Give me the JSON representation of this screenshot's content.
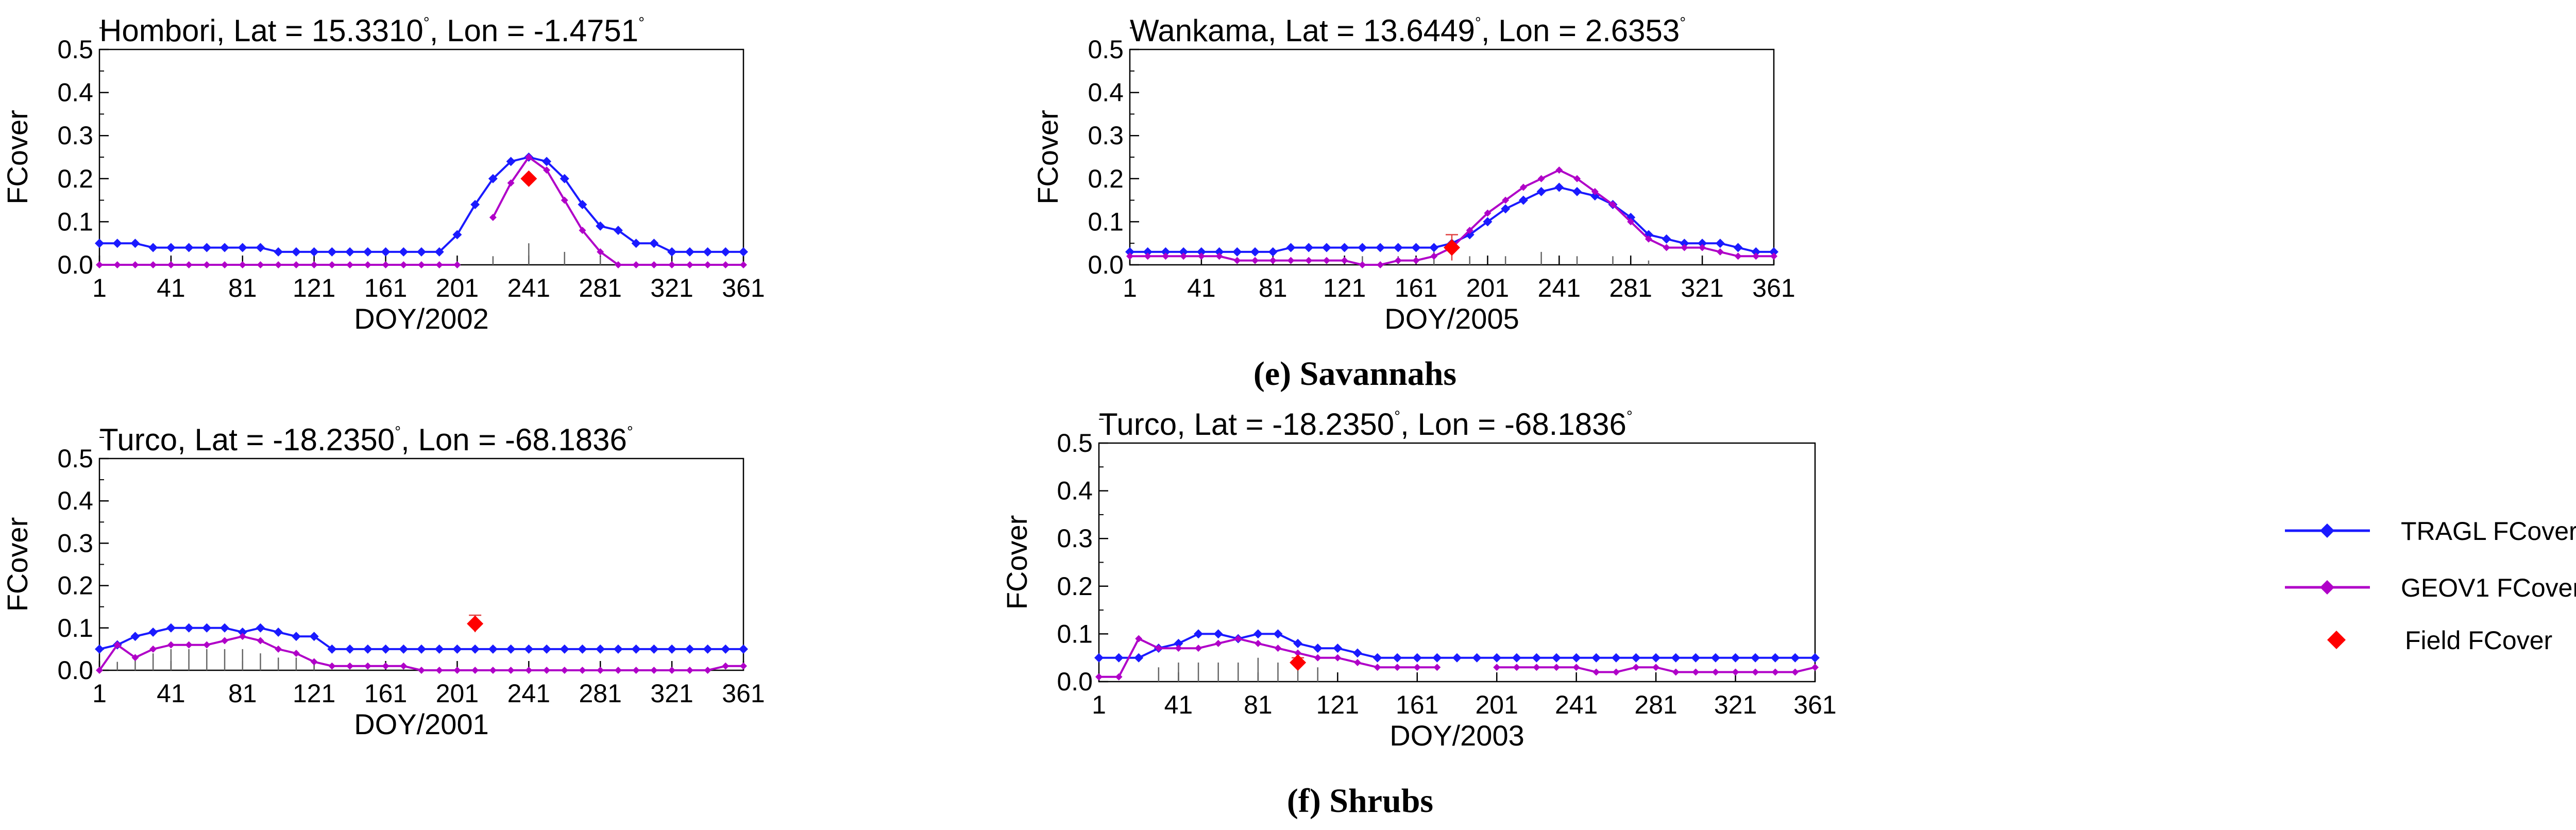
{
  "colors": {
    "tragl": "#1a1aff",
    "geov1": "#b000c8",
    "field": "#ff0000",
    "stem": "#666666"
  },
  "legend": {
    "tragl": "TRAGL FCover",
    "geov1": "GEOV1 FCover",
    "field": "Field FCover"
  },
  "captions": {
    "savannahs": "(e) Savannahs",
    "shrubs": "(f) Shrubs"
  },
  "chart_data": [
    {
      "type": "line",
      "title": "Hombori,  Lat = 15.3310",
      "title_lon": ", Lon = -1.4751",
      "xlabel": "DOY/2002",
      "ylabel": "FCover",
      "xticks": [
        1,
        41,
        81,
        121,
        161,
        201,
        241,
        281,
        321,
        361
      ],
      "yticks": [
        "0.0",
        "0.1",
        "0.2",
        "0.3",
        "0.4",
        "0.5"
      ],
      "xlim": [
        1,
        361
      ],
      "ylim": [
        0,
        0.5
      ],
      "series": [
        {
          "name": "TRAGL FCover",
          "x": [
            1,
            11,
            21,
            31,
            41,
            51,
            61,
            71,
            81,
            91,
            101,
            111,
            121,
            131,
            141,
            151,
            161,
            171,
            181,
            191,
            201,
            211,
            221,
            231,
            241,
            251,
            261,
            271,
            281,
            291,
            301,
            311,
            321,
            331,
            341,
            351,
            361
          ],
          "y": [
            0.05,
            0.05,
            0.05,
            0.04,
            0.04,
            0.04,
            0.04,
            0.04,
            0.04,
            0.04,
            0.03,
            0.03,
            0.03,
            0.03,
            0.03,
            0.03,
            0.03,
            0.03,
            0.03,
            0.03,
            0.07,
            0.14,
            0.2,
            0.24,
            0.25,
            0.24,
            0.2,
            0.14,
            0.09,
            0.08,
            0.05,
            0.05,
            0.03,
            0.03,
            0.03,
            0.03,
            0.03
          ]
        },
        {
          "name": "GEOV1 FCover",
          "x": [
            1,
            11,
            21,
            31,
            41,
            51,
            61,
            71,
            81,
            91,
            101,
            111,
            121,
            131,
            141,
            151,
            161,
            171,
            181,
            191,
            201,
            211,
            221,
            231,
            241,
            251,
            261,
            271,
            281,
            291,
            301,
            311,
            321,
            331,
            341,
            351,
            361
          ],
          "y": [
            0.0,
            0.0,
            0.0,
            0.0,
            0.0,
            0.0,
            0.0,
            0.0,
            0.0,
            0.0,
            0.0,
            0.0,
            0.0,
            0.0,
            0.0,
            0.0,
            0.0,
            0.0,
            0.0,
            0.0,
            0.0,
            null,
            0.11,
            0.19,
            0.25,
            0.22,
            0.15,
            0.08,
            0.03,
            0.0,
            0.0,
            0.0,
            0.0,
            0.0,
            0.0,
            0.0,
            0.0
          ]
        }
      ],
      "field": [
        {
          "x": 241,
          "y": 0.2,
          "err": 0.0
        }
      ],
      "stems": [
        {
          "x": 221,
          "y": 0.02
        },
        {
          "x": 241,
          "y": 0.05
        },
        {
          "x": 261,
          "y": 0.03
        },
        {
          "x": 281,
          "y": 0.02
        }
      ]
    },
    {
      "type": "line",
      "title": "Wankama,  Lat = 13.6449",
      "title_lon": ", Lon = 2.6353",
      "xlabel": "DOY/2005",
      "ylabel": "FCover",
      "xticks": [
        1,
        41,
        81,
        121,
        161,
        201,
        241,
        281,
        321,
        361
      ],
      "yticks": [
        "0.0",
        "0.1",
        "0.2",
        "0.3",
        "0.4",
        "0.5"
      ],
      "xlim": [
        1,
        361
      ],
      "ylim": [
        0,
        0.5
      ],
      "series": [
        {
          "name": "TRAGL FCover",
          "x": [
            1,
            11,
            21,
            31,
            41,
            51,
            61,
            71,
            81,
            91,
            101,
            111,
            121,
            131,
            141,
            151,
            161,
            171,
            181,
            191,
            201,
            211,
            221,
            231,
            241,
            251,
            261,
            271,
            281,
            291,
            301,
            311,
            321,
            331,
            341,
            351,
            361
          ],
          "y": [
            0.03,
            0.03,
            0.03,
            0.03,
            0.03,
            0.03,
            0.03,
            0.03,
            0.03,
            0.04,
            0.04,
            0.04,
            0.04,
            0.04,
            0.04,
            0.04,
            0.04,
            0.04,
            0.05,
            0.07,
            0.1,
            0.13,
            0.15,
            0.17,
            0.18,
            0.17,
            0.16,
            0.14,
            0.11,
            0.07,
            0.06,
            0.05,
            0.05,
            0.05,
            0.04,
            0.03,
            0.03
          ]
        },
        {
          "name": "GEOV1 FCover",
          "x": [
            1,
            11,
            21,
            31,
            41,
            51,
            61,
            71,
            81,
            91,
            101,
            111,
            121,
            131,
            141,
            151,
            161,
            171,
            181,
            191,
            201,
            211,
            221,
            231,
            241,
            251,
            261,
            271,
            281,
            291,
            301,
            311,
            321,
            331,
            341,
            351,
            361
          ],
          "y": [
            0.02,
            0.02,
            0.02,
            0.02,
            0.02,
            0.02,
            0.01,
            0.01,
            0.01,
            0.01,
            0.01,
            0.01,
            0.01,
            0.0,
            0.0,
            0.01,
            0.01,
            0.02,
            0.04,
            0.08,
            0.12,
            0.15,
            0.18,
            0.2,
            0.22,
            0.2,
            0.17,
            0.14,
            0.1,
            0.06,
            0.04,
            0.04,
            0.04,
            0.03,
            0.02,
            0.02,
            0.02
          ]
        }
      ],
      "field": [
        {
          "x": 181,
          "y": 0.04,
          "err": 0.03
        }
      ],
      "stems": [
        {
          "x": 131,
          "y": 0.02
        },
        {
          "x": 151,
          "y": 0.02
        },
        {
          "x": 171,
          "y": 0.03
        },
        {
          "x": 191,
          "y": 0.02
        },
        {
          "x": 211,
          "y": 0.02
        },
        {
          "x": 231,
          "y": 0.03
        },
        {
          "x": 251,
          "y": 0.02
        },
        {
          "x": 271,
          "y": 0.02
        },
        {
          "x": 291,
          "y": 0.01
        }
      ]
    },
    {
      "type": "line",
      "title": "Turco,  Lat = -18.2350",
      "title_lon": ", Lon = -68.1836",
      "xlabel": "DOY/2001",
      "ylabel": "FCover",
      "xticks": [
        1,
        41,
        81,
        121,
        161,
        201,
        241,
        281,
        321,
        361
      ],
      "yticks": [
        "0.0",
        "0.1",
        "0.2",
        "0.3",
        "0.4",
        "0.5"
      ],
      "xlim": [
        1,
        361
      ],
      "ylim": [
        0,
        0.5
      ],
      "series": [
        {
          "name": "TRAGL FCover",
          "x": [
            1,
            11,
            21,
            31,
            41,
            51,
            61,
            71,
            81,
            91,
            101,
            111,
            121,
            131,
            141,
            151,
            161,
            171,
            181,
            191,
            201,
            211,
            221,
            231,
            241,
            251,
            261,
            271,
            281,
            291,
            301,
            311,
            321,
            331,
            341,
            351,
            361
          ],
          "y": [
            0.05,
            0.06,
            0.08,
            0.09,
            0.1,
            0.1,
            0.1,
            0.1,
            0.09,
            0.1,
            0.09,
            0.08,
            0.08,
            0.05,
            0.05,
            0.05,
            0.05,
            0.05,
            0.05,
            0.05,
            0.05,
            0.05,
            0.05,
            0.05,
            0.05,
            0.05,
            0.05,
            0.05,
            0.05,
            0.05,
            0.05,
            0.05,
            0.05,
            0.05,
            0.05,
            0.05,
            0.05
          ]
        },
        {
          "name": "GEOV1 FCover",
          "x": [
            1,
            11,
            21,
            31,
            41,
            51,
            61,
            71,
            81,
            91,
            101,
            111,
            121,
            131,
            141,
            151,
            161,
            171,
            181,
            191,
            201,
            211,
            221,
            231,
            241,
            251,
            261,
            271,
            281,
            291,
            301,
            311,
            321,
            331,
            341,
            351,
            361
          ],
          "y": [
            0.0,
            0.06,
            0.03,
            0.05,
            0.06,
            0.06,
            0.06,
            0.07,
            0.08,
            0.07,
            0.05,
            0.04,
            0.02,
            0.01,
            0.01,
            0.01,
            0.01,
            0.01,
            0.0,
            0.0,
            0.0,
            0.0,
            0.0,
            0.0,
            0.0,
            0.0,
            0.0,
            0.0,
            0.0,
            0.0,
            0.0,
            0.0,
            0.0,
            0.0,
            0.0,
            0.01,
            0.01
          ]
        }
      ],
      "field": [
        {
          "x": 211,
          "y": 0.11,
          "err": 0.02
        }
      ],
      "stems": [
        {
          "x": 11,
          "y": 0.02
        },
        {
          "x": 21,
          "y": 0.03
        },
        {
          "x": 31,
          "y": 0.04
        },
        {
          "x": 41,
          "y": 0.05
        },
        {
          "x": 51,
          "y": 0.05
        },
        {
          "x": 61,
          "y": 0.05
        },
        {
          "x": 71,
          "y": 0.05
        },
        {
          "x": 81,
          "y": 0.05
        },
        {
          "x": 91,
          "y": 0.04
        },
        {
          "x": 101,
          "y": 0.03
        },
        {
          "x": 111,
          "y": 0.03
        },
        {
          "x": 121,
          "y": 0.02
        }
      ]
    },
    {
      "type": "line",
      "title": "Turco,  Lat = -18.2350",
      "title_lon": ", Lon = -68.1836",
      "xlabel": "DOY/2003",
      "ylabel": "FCover",
      "xticks": [
        1,
        41,
        81,
        121,
        161,
        201,
        241,
        281,
        321,
        361
      ],
      "yticks": [
        "0.0",
        "0.1",
        "0.2",
        "0.3",
        "0.4",
        "0.5"
      ],
      "xlim": [
        1,
        361
      ],
      "ylim": [
        0,
        0.5
      ],
      "series": [
        {
          "name": "TRAGL FCover",
          "x": [
            1,
            11,
            21,
            31,
            41,
            51,
            61,
            71,
            81,
            91,
            101,
            111,
            121,
            131,
            141,
            151,
            161,
            171,
            181,
            191,
            201,
            211,
            221,
            231,
            241,
            251,
            261,
            271,
            281,
            291,
            301,
            311,
            321,
            331,
            341,
            351,
            361
          ],
          "y": [
            0.05,
            0.05,
            0.05,
            0.07,
            0.08,
            0.1,
            0.1,
            0.09,
            0.1,
            0.1,
            0.08,
            0.07,
            0.07,
            0.06,
            0.05,
            0.05,
            0.05,
            0.05,
            0.05,
            0.05,
            0.05,
            0.05,
            0.05,
            0.05,
            0.05,
            0.05,
            0.05,
            0.05,
            0.05,
            0.05,
            0.05,
            0.05,
            0.05,
            0.05,
            0.05,
            0.05,
            0.05
          ]
        },
        {
          "name": "GEOV1 FCover",
          "x": [
            1,
            11,
            21,
            31,
            41,
            51,
            61,
            71,
            81,
            91,
            101,
            111,
            121,
            131,
            141,
            151,
            161,
            171,
            181,
            191,
            201,
            211,
            221,
            231,
            241,
            251,
            261,
            271,
            281,
            291,
            301,
            311,
            321,
            331,
            341,
            351,
            361
          ],
          "y": [
            0.01,
            0.01,
            0.09,
            0.07,
            0.07,
            0.07,
            0.08,
            0.09,
            0.08,
            0.07,
            0.06,
            0.05,
            0.05,
            0.04,
            0.03,
            0.03,
            0.03,
            0.03,
            null,
            null,
            0.03,
            0.03,
            0.03,
            0.03,
            0.03,
            0.02,
            0.02,
            0.03,
            0.03,
            0.02,
            0.02,
            0.02,
            0.02,
            0.02,
            0.02,
            0.02,
            0.03
          ]
        }
      ],
      "field": [
        {
          "x": 101,
          "y": 0.04,
          "err": 0.01
        }
      ],
      "stems": [
        {
          "x": 31,
          "y": 0.03
        },
        {
          "x": 41,
          "y": 0.04
        },
        {
          "x": 51,
          "y": 0.04
        },
        {
          "x": 61,
          "y": 0.04
        },
        {
          "x": 71,
          "y": 0.04
        },
        {
          "x": 81,
          "y": 0.05
        },
        {
          "x": 91,
          "y": 0.04
        },
        {
          "x": 101,
          "y": 0.03
        },
        {
          "x": 111,
          "y": 0.03
        }
      ]
    }
  ]
}
